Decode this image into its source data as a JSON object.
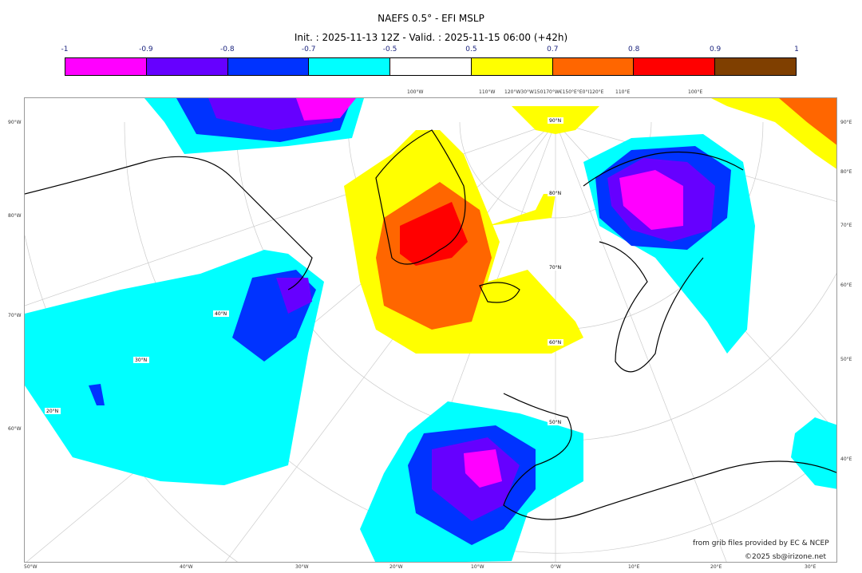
{
  "title": "NAEFS 0.5° - EFI MSLP",
  "subtitle": "Init. : 2025-11-13 12Z - Valid. : 2025-11-15 06:00 (+42h)",
  "colorbar": {
    "labels": [
      "-1",
      "-0.9",
      "-0.8",
      "-0.7",
      "-0.5",
      "0.5",
      "0.7",
      "0.8",
      "0.9",
      "1"
    ],
    "colors": [
      "#ff00ff",
      "#6600ff",
      "#0033ff",
      "#00ffff",
      "#ffffff",
      "#ffff00",
      "#ff6600",
      "#ff0000",
      "#7f3f00"
    ]
  },
  "map": {
    "left_labels": [
      "90°W",
      "80°W",
      "70°W",
      "60°W"
    ],
    "right_labels": [
      "90°E",
      "80°E",
      "70°E",
      "60°E",
      "50°E",
      "40°E"
    ],
    "bottom_labels": [
      "50°W",
      "40°W",
      "30°W",
      "20°W",
      "10°W",
      "0°W",
      "10°E",
      "20°E",
      "30°E"
    ],
    "top_labels": [
      "100°W",
      "110°W",
      "120°W30°W150170°W€150°E°E0°I120°E",
      "110°E",
      "100°E"
    ],
    "lat_labels": [
      "90°N",
      "80°N",
      "70°N",
      "60°N",
      "50°N",
      "40°N",
      "30°N",
      "20°N"
    ]
  },
  "credits": {
    "source": "from grib files provided by EC & NCEP",
    "copyright": "©2025 sb@irizone.net"
  }
}
